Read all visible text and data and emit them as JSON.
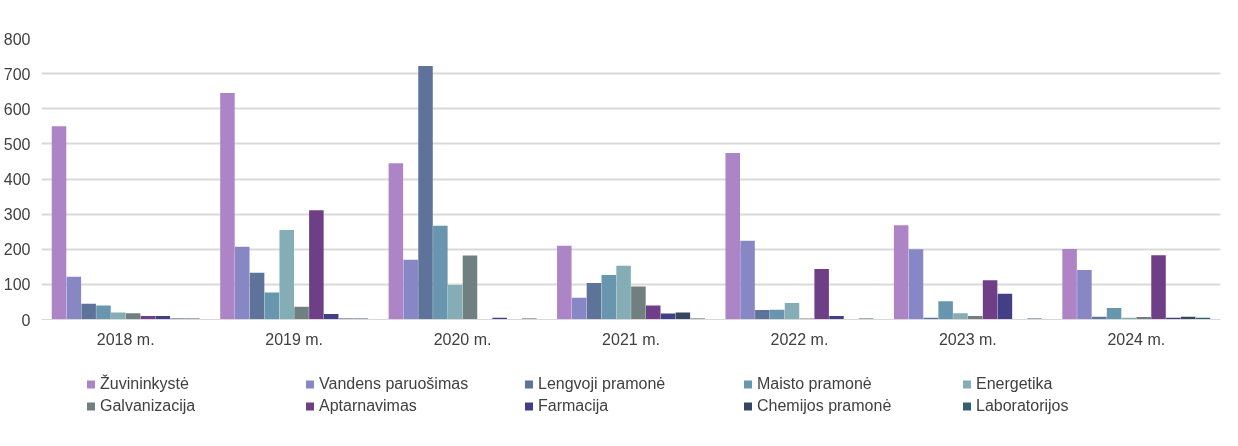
{
  "chart_data": {
    "type": "bar",
    "categories": [
      "2018 m.",
      "2019 m.",
      "2020 m.",
      "2021 m.",
      "2022 m.",
      "2023 m.",
      "2024 m."
    ],
    "series": [
      {
        "name": "Žuvininkystė",
        "color": "#ad85c6",
        "values": [
          550,
          645,
          445,
          210,
          474,
          268,
          201
        ]
      },
      {
        "name": "Vandens paruošimas",
        "color": "#8787c6",
        "values": [
          122,
          207,
          170,
          62,
          224,
          200,
          141
        ]
      },
      {
        "name": "Lengvoji pramonė",
        "color": "#5e7399",
        "values": [
          45,
          133,
          722,
          104,
          27,
          5,
          8
        ]
      },
      {
        "name": "Maisto pramonė",
        "color": "#6796ae",
        "values": [
          40,
          77,
          267,
          127,
          28,
          52,
          33
        ]
      },
      {
        "name": "Energetika",
        "color": "#85adb5",
        "values": [
          20,
          255,
          98,
          153,
          47,
          18,
          5
        ]
      },
      {
        "name": "Galvanizacija",
        "color": "#708080",
        "values": [
          18,
          36,
          182,
          94,
          3,
          10,
          7
        ]
      },
      {
        "name": "Aptarnavimas",
        "color": "#6e3f87",
        "values": [
          10,
          311,
          0,
          40,
          144,
          112,
          183
        ]
      },
      {
        "name": "Farmacija",
        "color": "#423f87",
        "values": [
          10,
          16,
          5,
          17,
          10,
          73,
          5
        ]
      },
      {
        "name": "Chemijos pramonė",
        "color": "#364560",
        "values": [
          3,
          3,
          0,
          20,
          null,
          0,
          8
        ]
      },
      {
        "name": "Laboratorijos",
        "color": "#345f6f",
        "values": [
          3,
          3,
          3,
          3,
          3,
          3,
          5
        ]
      }
    ],
    "ylim": [
      0,
      800
    ],
    "yticks": [
      0,
      100,
      200,
      300,
      400,
      500,
      600,
      700,
      800
    ],
    "grid": "y",
    "legend": "bottom"
  }
}
